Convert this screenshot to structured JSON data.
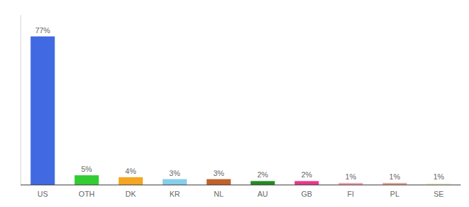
{
  "chart_data": {
    "type": "bar",
    "categories": [
      "US",
      "OTH",
      "DK",
      "KR",
      "NL",
      "AU",
      "GB",
      "FI",
      "PL",
      "SE"
    ],
    "values": [
      77,
      5,
      4,
      3,
      3,
      2,
      2,
      1,
      1,
      1
    ],
    "value_labels": [
      "77%",
      "5%",
      "4%",
      "3%",
      "3%",
      "2%",
      "2%",
      "1%",
      "1%",
      "1%"
    ],
    "colors": [
      "#4169e1",
      "#33cc33",
      "#f5a623",
      "#87ceeb",
      "#c0622a",
      "#228B22",
      "#e8388a",
      "#f4a0b0",
      "#e8a090",
      "#f5f5dc"
    ],
    "ylim": [
      0,
      88
    ],
    "grid": false,
    "data_labels": true,
    "tick_labels": "x"
  }
}
